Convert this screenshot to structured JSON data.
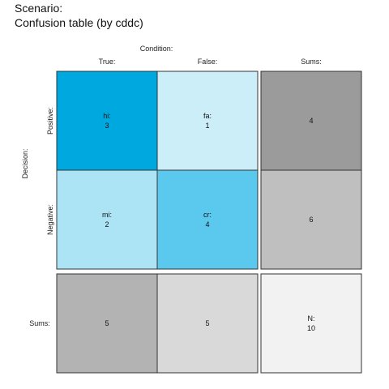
{
  "chart_data": {
    "type": "table",
    "title": "Scenario:",
    "subtitle": "Confusion table (by cddc)",
    "condition_label": "Condition:",
    "decision_label": "Decision:",
    "col_labels": [
      "True:",
      "False:",
      "Sums:"
    ],
    "row_labels": [
      "Positive:",
      "Negative:",
      "Sums:"
    ],
    "cells": [
      [
        {
          "label": "hi:",
          "value": 3,
          "color": "#00a8e0"
        },
        {
          "label": "fa:",
          "value": 1,
          "color": "#cceef8"
        },
        {
          "label": "",
          "value": 4,
          "color": "#9b9b9b"
        }
      ],
      [
        {
          "label": "mi:",
          "value": 2,
          "color": "#ace4f6"
        },
        {
          "label": "cr:",
          "value": 4,
          "color": "#5bc8ee"
        },
        {
          "label": "",
          "value": 6,
          "color": "#bfbfbf"
        }
      ],
      [
        {
          "label": "",
          "value": 5,
          "color": "#b3b3b3"
        },
        {
          "label": "",
          "value": 5,
          "color": "#d9d9d9"
        },
        {
          "label": "N:",
          "value": 10,
          "color": "#f2f2f2"
        }
      ]
    ]
  }
}
